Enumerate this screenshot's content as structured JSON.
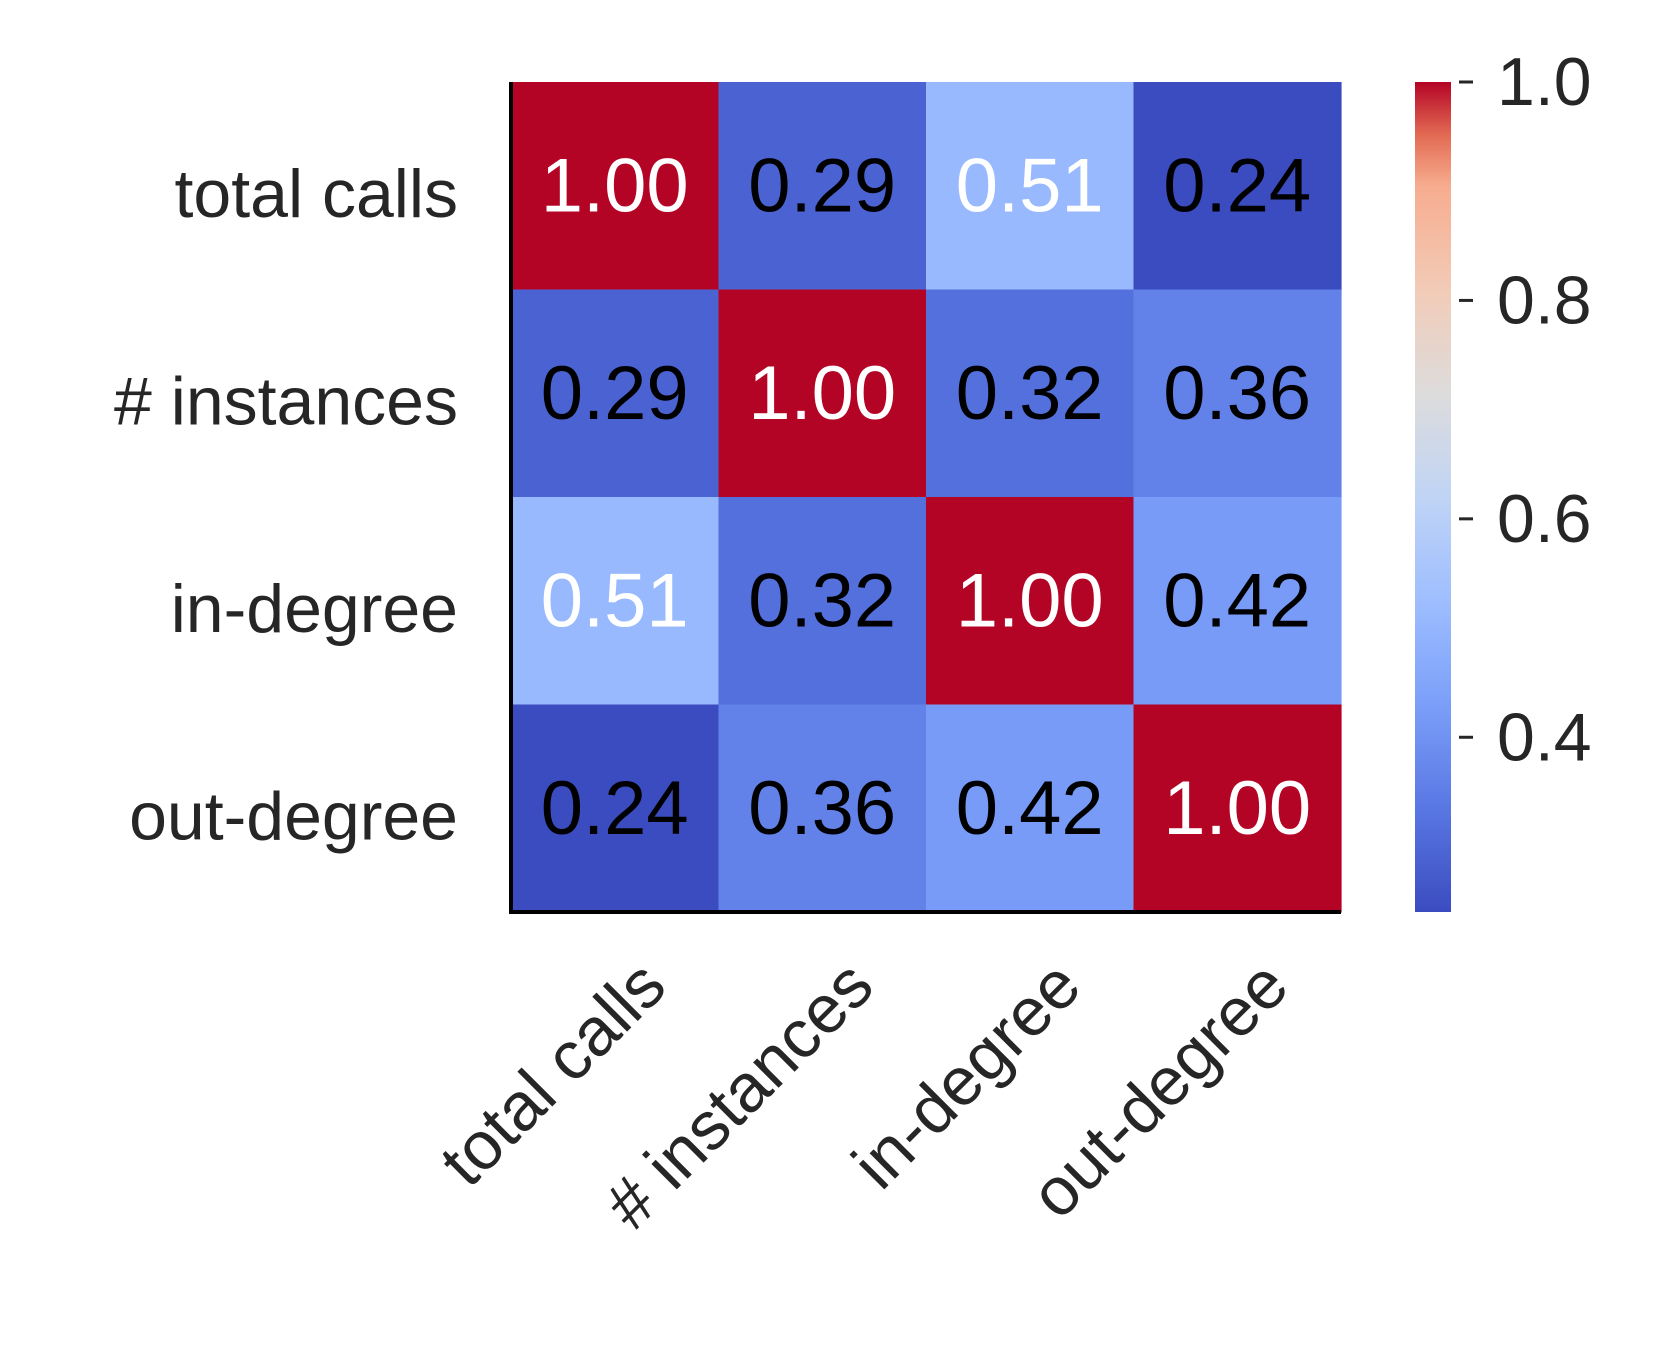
{
  "chart_data": {
    "type": "heatmap",
    "row_labels": [
      "total calls",
      "# instances",
      "in-degree",
      "out-degree"
    ],
    "col_labels": [
      "total calls",
      "# instances",
      "in-degree",
      "out-degree"
    ],
    "values": [
      [
        1.0,
        0.29,
        0.51,
        0.24
      ],
      [
        0.29,
        1.0,
        0.32,
        0.36
      ],
      [
        0.51,
        0.32,
        1.0,
        0.42
      ],
      [
        0.24,
        0.36,
        0.42,
        1.0
      ]
    ],
    "annotation_format": "0.00",
    "colormap": "coolwarm",
    "color_range": [
      0.24,
      1.0
    ],
    "colorbar": {
      "ticks": [
        0.4,
        0.6,
        0.8,
        1.0
      ],
      "tick_labels": [
        "0.4",
        "0.6",
        "0.8",
        "1.0"
      ],
      "position": "right"
    },
    "x_tick_rotation_deg": 45,
    "title": "",
    "xlabel": "",
    "ylabel": "",
    "grid": false,
    "annotation_colors": {
      "dark_text": "#000000",
      "light_text": "#ffffff"
    }
  }
}
